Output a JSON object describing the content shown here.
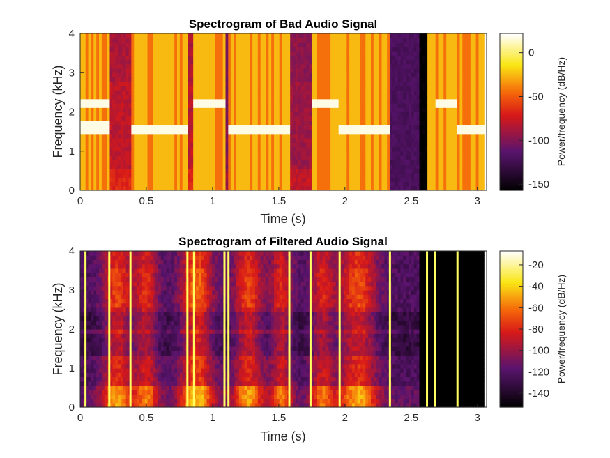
{
  "chart_data": [
    {
      "type": "heatmap",
      "title": "Spectrogram of Bad Audio Signal",
      "xlabel": "Time (s)",
      "ylabel": "Frequency (kHz)",
      "xlim": [
        0,
        3.07
      ],
      "ylim": [
        0,
        4
      ],
      "xticks": [
        0,
        0.5,
        1,
        1.5,
        2,
        2.5,
        3
      ],
      "xtick_labels": [
        "0",
        "0.5",
        "1",
        "1.5",
        "2",
        "2.5",
        "3"
      ],
      "yticks": [
        0,
        1,
        2,
        3,
        4
      ],
      "ytick_labels": [
        "0",
        "1",
        "2",
        "3",
        "4"
      ],
      "colorbar": {
        "label": "Power/frequency (dB/Hz)",
        "clim": [
          -157,
          22
        ],
        "ticks": [
          0,
          -50,
          -100,
          -150
        ],
        "tick_labels": [
          "0",
          "-50",
          "-100",
          "-150"
        ]
      },
      "colormap": "hot-to-black",
      "time_extent": 3.05,
      "segments": [
        {
          "t0": 0.0,
          "t1": 0.22,
          "level": -25,
          "tone_khz": 1.6,
          "tone2_khz": 2.2
        },
        {
          "t0": 0.22,
          "t1": 0.38,
          "level": -80
        },
        {
          "t0": 0.38,
          "t1": 0.81,
          "level": -25,
          "tone_khz": 1.55
        },
        {
          "t0": 0.81,
          "t1": 0.86,
          "level": -80
        },
        {
          "t0": 0.86,
          "t1": 1.09,
          "level": -25,
          "tone_khz": 2.2
        },
        {
          "t0": 1.09,
          "t1": 1.12,
          "level": -100
        },
        {
          "t0": 1.12,
          "t1": 1.58,
          "level": -25,
          "tone_khz": 1.55
        },
        {
          "t0": 1.58,
          "t1": 1.74,
          "level": -90
        },
        {
          "t0": 1.74,
          "t1": 1.96,
          "level": -25,
          "tone_khz": 2.2
        },
        {
          "t0": 1.96,
          "t1": 2.34,
          "level": -25,
          "tone_khz": 1.55
        },
        {
          "t0": 2.34,
          "t1": 2.57,
          "level": -120
        },
        {
          "t0": 2.57,
          "t1": 2.62,
          "level": -157
        },
        {
          "t0": 2.62,
          "t1": 2.68,
          "level": -25
        },
        {
          "t0": 2.68,
          "t1": 2.85,
          "level": -25,
          "tone_khz": 2.2
        },
        {
          "t0": 2.85,
          "t1": 3.05,
          "level": -25,
          "tone_khz": 1.55
        }
      ]
    },
    {
      "type": "heatmap",
      "title": "Spectrogram of Filtered Audio Signal",
      "xlabel": "Time (s)",
      "ylabel": "Frequency (kHz)",
      "xlim": [
        0,
        3.07
      ],
      "ylim": [
        0,
        4
      ],
      "xticks": [
        0,
        0.5,
        1,
        1.5,
        2,
        2.5,
        3
      ],
      "xtick_labels": [
        "0",
        "0.5",
        "1",
        "1.5",
        "2",
        "2.5",
        "3"
      ],
      "yticks": [
        0,
        1,
        2,
        3,
        4
      ],
      "ytick_labels": [
        "0",
        "1",
        "2",
        "3",
        "4"
      ],
      "colorbar": {
        "label": "Power/frequency (dB/Hz)",
        "clim": [
          -153,
          -7
        ],
        "ticks": [
          -20,
          -40,
          -60,
          -80,
          -100,
          -120,
          -140
        ],
        "tick_labels": [
          "-20",
          "-40",
          "-60",
          "-80",
          "-100",
          "-120",
          "-140"
        ]
      },
      "colormap": "hot-to-black",
      "time_extent": 3.05,
      "silence_start_s": 2.57,
      "vertical_lines_s": [
        0.04,
        0.22,
        0.38,
        0.81,
        0.86,
        1.09,
        1.12,
        1.58,
        1.74,
        1.96,
        2.34,
        2.62,
        2.68,
        2.85
      ],
      "bursts": [
        {
          "t": 0.28,
          "w": 0.11,
          "amp": 1.0
        },
        {
          "t": 0.5,
          "w": 0.09,
          "amp": 0.85
        },
        {
          "t": 0.88,
          "w": 0.12,
          "amp": 1.2
        },
        {
          "t": 1.27,
          "w": 0.11,
          "amp": 1.0
        },
        {
          "t": 1.52,
          "w": 0.08,
          "amp": 0.85
        },
        {
          "t": 1.83,
          "w": 0.09,
          "amp": 0.8
        },
        {
          "t": 2.1,
          "w": 0.14,
          "amp": 1.05
        }
      ]
    }
  ]
}
